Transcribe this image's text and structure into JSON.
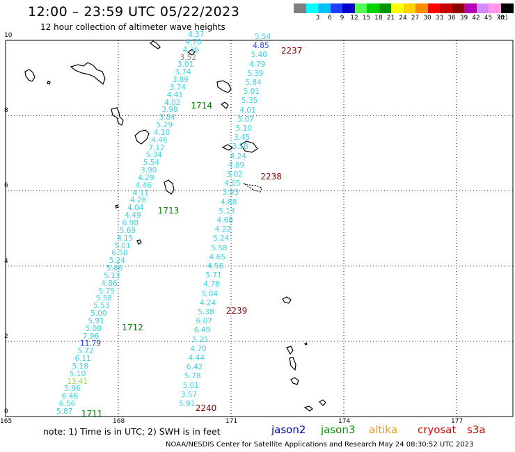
{
  "title": "12:00 – 23:59 UTC 05/22/2023",
  "subtitle": "12 hour collection of altimeter wave heights",
  "colorbar": {
    "unit": "(ft)",
    "bins": [
      {
        "label": "",
        "color": "#808080"
      },
      {
        "label": "3",
        "color": "#00ffff"
      },
      {
        "label": "6",
        "color": "#00bfff"
      },
      {
        "label": "9",
        "color": "#1f3fff"
      },
      {
        "label": "12",
        "color": "#0000c8"
      },
      {
        "label": "15",
        "color": "#50ff50"
      },
      {
        "label": "18",
        "color": "#00d200"
      },
      {
        "label": "21",
        "color": "#009600"
      },
      {
        "label": "24",
        "color": "#ffff00"
      },
      {
        "label": "27",
        "color": "#ffd200"
      },
      {
        "label": "30",
        "color": "#ff8c00"
      },
      {
        "label": "33",
        "color": "#ff0000"
      },
      {
        "label": "36",
        "color": "#c80000"
      },
      {
        "label": "39",
        "color": "#8c0000"
      },
      {
        "label": "42",
        "color": "#b400b4"
      },
      {
        "label": "45",
        "color": "#d28cff"
      },
      {
        "label": "70",
        "color": "#ff96e6"
      },
      {
        "label": "",
        "color": "#000000"
      }
    ]
  },
  "axes": {
    "x_ticks": [
      "165",
      "168",
      "171",
      "174",
      "177"
    ],
    "y_ticks": [
      "0",
      "2",
      "4",
      "6",
      "8",
      "10"
    ],
    "x_range": [
      165,
      178.5
    ],
    "y_range": [
      0,
      10
    ]
  },
  "tracks": [
    {
      "color": "#33d6e6",
      "values": [
        "5.87",
        "6.56",
        "6.46",
        "5.96",
        "13.41",
        "5.10",
        "5.18",
        "6.11",
        "5.72",
        "11.79",
        "7.96",
        "5.08",
        "5.91",
        "5.00",
        "5.53",
        "5.58",
        "5.75",
        "4.86",
        "5.13",
        "5.86",
        "5.24",
        "6.58",
        "5.01",
        "4.15",
        "5.69",
        "6.98",
        "4.49",
        "4.04",
        "4.26",
        "4.11",
        "4.46",
        "4.29",
        "3.90",
        "5.54",
        "5.34",
        "7.12",
        "4.46",
        "4.10",
        "5.29",
        "3.84",
        "3.98",
        "4.02",
        "4.41",
        "3.74",
        "3.89",
        "3.74",
        "3.01",
        "3.52",
        "4.36",
        "4.70",
        "4.37"
      ],
      "value_colors": {
        "4": "#99dd44",
        "9": "#1f3fff",
        "47": "#888888"
      },
      "labels": [
        {
          "text": "1711",
          "lat": 0.05
        },
        {
          "text": "1712",
          "lat": 2.35
        },
        {
          "text": "1713",
          "lat": 5.45
        },
        {
          "text": "1714",
          "lat": 8.25
        }
      ],
      "label_color": "#008000"
    },
    {
      "color": "#33d6e6",
      "values": [
        "5.91",
        "3.57",
        "5.01",
        "5.78",
        "6.42",
        "4.44",
        "4.70",
        "5.25",
        "6.49",
        "6.07",
        "5.38",
        "4.24",
        "5.04",
        "4.78",
        "5.71",
        "4.56",
        "4.65",
        "5.58",
        "5.24",
        "4.22",
        "4.68",
        "5.13",
        "4.88",
        "3.93",
        "4.05",
        "3.02",
        "4.89",
        "4.24",
        "3.58",
        "3.45",
        "5.10",
        "5.07",
        "4.01",
        "5.35",
        "5.01",
        "5.84",
        "5.39",
        "4.79",
        "5.40",
        "4.85",
        "5.54"
      ],
      "value_colors": {
        "39": "#1f3fff"
      },
      "labels": [
        {
          "text": "2240",
          "lat": 0.2
        },
        {
          "text": "2239",
          "lat": 2.8
        },
        {
          "text": "2238",
          "lat": 6.35
        },
        {
          "text": "2237",
          "lat": 9.7
        }
      ],
      "label_color": "#8b0000"
    }
  ],
  "note": "note:  1) Time is in UTC;  2) SWH is in feet",
  "satellites": [
    {
      "name": "jason2",
      "color": "#0000cc"
    },
    {
      "name": "jason3",
      "color": "#009900"
    },
    {
      "name": "altika",
      "color": "#ff9900"
    },
    {
      "name": "cryosat",
      "color": "#dd0000"
    },
    {
      "name": "s3a",
      "color": "#cc0000"
    }
  ],
  "credit": "NOAA/NESDIS Center for Satellite Applications and Research     May 24 08:30:52 UTC 2023"
}
